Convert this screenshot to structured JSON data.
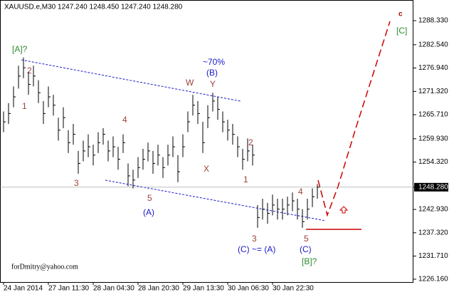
{
  "chart_data": {
    "type": "ohlc",
    "title": "XAUUSD.e,M30  1247.240 1248.450 1247.240 1248.280",
    "categories": [
      "24 Jan 2014",
      null,
      null,
      null,
      null,
      null,
      null,
      null,
      null,
      "27 Jan 11:30",
      null,
      null,
      null,
      null,
      null,
      null,
      null,
      null,
      "28 Jan 04:30",
      null,
      null,
      null,
      null,
      null,
      null,
      null,
      null,
      "28 Jan 20:30",
      null,
      null,
      null,
      null,
      null,
      null,
      null,
      null,
      "29 Jan 13:30",
      null,
      null,
      null,
      null,
      null,
      null,
      null,
      null,
      "30 Jan 06:30",
      null,
      null,
      null,
      null,
      null,
      null,
      null,
      null,
      "30 Jan 22:30",
      null,
      null,
      null,
      null,
      null,
      null,
      null,
      null,
      null
    ],
    "series": [
      {
        "name": "high",
        "values": [
          1266.5,
          1268.5,
          1272.5,
          1277.5,
          1279.5,
          1276,
          1277.5,
          1274,
          1269,
          1272.5,
          1270.5,
          1265,
          1267.5,
          1262,
          1263.5,
          1257,
          1259.5,
          1261,
          1258.5,
          1261.5,
          1262.5,
          1259.5,
          1260.5,
          1258,
          1261,
          1254,
          1252.5,
          1255.5,
          1257.5,
          1259,
          1257,
          1258.5,
          1255.5,
          1258.5,
          1260.5,
          1256,
          1261,
          1266.5,
          1270.5,
          1269,
          1264,
          1268,
          1271,
          1270,
          1266.5,
          1264.5,
          1263.5,
          1260.5,
          1257.5,
          1260,
          1258.5,
          1244,
          1245.5,
          1244.5,
          1246.5,
          1245.5,
          1245.5,
          1246,
          1247,
          1245.5,
          1243,
          1245.5,
          1248,
          1249
        ]
      },
      {
        "name": "low",
        "values": [
          1261.5,
          1263.5,
          1267.5,
          1272,
          1274.5,
          1270.5,
          1272.5,
          1268.5,
          1263.5,
          1267.5,
          1265.5,
          1259.5,
          1262.5,
          1256.5,
          1258.5,
          1251.5,
          1254.5,
          1255.5,
          1253.5,
          1256.5,
          1258.5,
          1254.5,
          1255.5,
          1252.5,
          1256.5,
          1248.5,
          1248,
          1250.5,
          1252.5,
          1254.5,
          1251.5,
          1253.5,
          1250.5,
          1253.5,
          1255.5,
          1249.5,
          1255.5,
          1261.5,
          1265.5,
          1263.5,
          1256.5,
          1262.5,
          1266.5,
          1264.5,
          1261.5,
          1259.5,
          1258.5,
          1255.5,
          1252.5,
          1254.5,
          1253.5,
          1238.5,
          1240.5,
          1239.5,
          1241.5,
          1240.5,
          1240.5,
          1241.5,
          1242.5,
          1240.5,
          1238.5,
          1240.5,
          1243.5,
          1245.5
        ]
      },
      {
        "name": "close",
        "values": [
          1264,
          1266,
          1270,
          1275,
          1277,
          1273,
          1275,
          1271,
          1266,
          1270,
          1268,
          1262,
          1265,
          1259,
          1261,
          1254,
          1257,
          1258,
          1256,
          1259,
          1261,
          1257,
          1258,
          1255,
          1259,
          1251,
          1250,
          1253,
          1255,
          1257,
          1254,
          1256,
          1253,
          1256,
          1258,
          1252,
          1258,
          1264,
          1268,
          1266,
          1259,
          1265,
          1269,
          1267,
          1264,
          1262,
          1261,
          1258,
          1255,
          1257,
          1256,
          1241,
          1243,
          1242,
          1244,
          1243,
          1243,
          1244,
          1245,
          1243,
          1240,
          1243,
          1246,
          1248.28
        ]
      }
    ],
    "ylim": [
      1225.47,
      1293.3
    ],
    "yticks": [
      {
        "value": 1288.33,
        "label": "1288.330"
      },
      {
        "value": 1282.54,
        "label": "1282.540"
      },
      {
        "value": 1276.94,
        "label": "1276.940"
      },
      {
        "value": 1271.32,
        "label": "1271.320"
      },
      {
        "value": 1265.71,
        "label": "1265.710"
      },
      {
        "value": 1259.93,
        "label": "1259.930"
      },
      {
        "value": 1254.32,
        "label": "1254.320"
      },
      {
        "value": 1248.28,
        "label": "1248.280"
      },
      {
        "value": 1242.93,
        "label": "1242.930"
      },
      {
        "value": 1237.32,
        "label": "1237.320"
      },
      {
        "value": 1231.71,
        "label": "1231.710"
      },
      {
        "value": 1226.16,
        "label": "1226.160"
      }
    ],
    "current_price_tick": 7,
    "color": "#000000",
    "grid": false,
    "annotations": [
      "[A]?",
      "2",
      "1",
      "3",
      "4",
      "5",
      "(A)",
      "~70%",
      "(B)",
      "W",
      "Y",
      "X",
      "2",
      "1",
      "3",
      "(C) ~= (A)",
      "4",
      "5",
      "(C)",
      "[B]?",
      "c",
      "[C]",
      "forDmitry@yahoo.com"
    ]
  }
}
